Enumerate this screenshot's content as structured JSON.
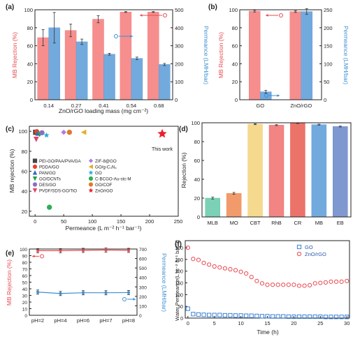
{
  "chart_data": [
    {
      "panel": "(a)",
      "type": "bar",
      "xlabel": "ZnO/rGO loading mass (mg cm⁻²)",
      "ylabel_left": "MB Rejection (%)",
      "ylabel_right": "Permeance (LMH/bar)",
      "categories": [
        "0.14",
        "0.27",
        "0.41",
        "0.54",
        "0.68"
      ],
      "ylim_left": [
        0,
        100
      ],
      "ylim_right": [
        0,
        500
      ],
      "yticks_left": [
        0,
        20,
        40,
        60,
        80,
        100
      ],
      "yticks_right": [
        0,
        100,
        200,
        300,
        400,
        500
      ],
      "series": [
        {
          "axis": "left",
          "color": "#f47a7a",
          "values": [
            69,
            77,
            89.5,
            97.5,
            97.5
          ],
          "errors": [
            9,
            7,
            4,
            0.5,
            0.5
          ]
        },
        {
          "axis": "right",
          "color": "#5b9bd8",
          "values": [
            400,
            322,
            253,
            230,
            196
          ],
          "errors": [
            85,
            15,
            5,
            7,
            6
          ]
        }
      ]
    },
    {
      "panel": "(b)",
      "type": "bar",
      "ylabel_left": "MB Rejection (%)",
      "ylabel_right": "Permeance (LMH/bar)",
      "categories": [
        "GO",
        "ZnO/rGO"
      ],
      "ylim_left": [
        0,
        100
      ],
      "ylim_right": [
        0,
        250
      ],
      "yticks_left": [
        0,
        20,
        40,
        60,
        80,
        100
      ],
      "yticks_right": [
        0,
        50,
        100,
        150,
        200,
        250
      ],
      "series": [
        {
          "axis": "left",
          "color": "#f47a7a",
          "values": [
            98.5,
            98
          ],
          "errors": [
            1,
            1
          ]
        },
        {
          "axis": "right",
          "color": "#5b9bd8",
          "values": [
            22,
            245
          ],
          "errors": [
            4,
            8
          ]
        }
      ]
    },
    {
      "panel": "(c)",
      "type": "scatter",
      "xlabel": "Permeance (L m⁻² h⁻¹ bar⁻¹)",
      "ylabel": "MB rejection (%)",
      "xlim": [
        -10,
        250
      ],
      "ylim": [
        15,
        105
      ],
      "xticks": [
        0,
        50,
        100,
        150,
        200,
        250
      ],
      "annotation": "This work",
      "points": [
        {
          "name": "PEI-GO/PAA/PVA/GA",
          "color": "#444444",
          "marker": "square",
          "x": 1,
          "y": 99
        },
        {
          "name": "PDDA/GO",
          "color": "#e8412c",
          "marker": "circle",
          "x": 3,
          "y": 99.5
        },
        {
          "name": "PAN/GO",
          "color": "#2e6dbf",
          "marker": "triangle-up",
          "x": 5,
          "y": 98
        },
        {
          "name": "GO/DCNTs",
          "color": "#2a9d4a",
          "marker": "triangle-down",
          "x": 8,
          "y": 97
        },
        {
          "name": "DES/GO",
          "color": "#8a6fc0",
          "marker": "circle",
          "x": 12,
          "y": 98.5
        },
        {
          "name": "PVDF/SDS-GO/TiO",
          "color": "#e8416e",
          "marker": "triangle-down",
          "x": 2,
          "y": 92
        },
        {
          "name": "ZIF-8@GO",
          "color": "#b57be0",
          "marker": "diamond",
          "x": 50,
          "y": 99
        },
        {
          "name": "GO/g-C₃N₄",
          "color": "#e0b02c",
          "marker": "triangle-left",
          "x": 85,
          "y": 99
        },
        {
          "name": "GO",
          "color": "#2aaed2",
          "marker": "star",
          "x": 20,
          "y": 96
        },
        {
          "name": "C-BCGO-Au-stc-M",
          "color": "#2fae57",
          "marker": "circle",
          "x": 25,
          "y": 24
        },
        {
          "name": "GO/COF",
          "color": "#e07a2c",
          "marker": "circle",
          "x": 60,
          "y": 99
        },
        {
          "name": "ZnO/rGO",
          "color": "#e8222c",
          "marker": "star",
          "x": 222,
          "y": 97.5
        }
      ]
    },
    {
      "panel": "(d)",
      "type": "bar",
      "ylabel": "Rejection (%)",
      "ylim": [
        0,
        100
      ],
      "yticks": [
        0,
        20,
        40,
        60,
        80,
        100
      ],
      "categories": [
        "MLB",
        "MO",
        "CBT",
        "RhB",
        "CR",
        "MB",
        "EB"
      ],
      "values": [
        20,
        25,
        98.5,
        97.5,
        99.5,
        98,
        96
      ],
      "errors": [
        1,
        1,
        0.5,
        0.5,
        0.3,
        0.5,
        0.5
      ],
      "colors": [
        "#63c9a8",
        "#ef8a52",
        "#f2d27a",
        "#f06f6f",
        "#e85a4f",
        "#5b9bd8",
        "#6a86c8"
      ]
    },
    {
      "panel": "(e)",
      "type": "line",
      "ylabel_left": "MB Rejection (%)",
      "ylabel_right": "Permeance (LMH/bar)",
      "categories": [
        "pH=2",
        "pH=4",
        "pH=6",
        "pH=7",
        "pH=8"
      ],
      "ylim_left": [
        0,
        100
      ],
      "ylim_right": [
        0,
        700
      ],
      "yticks_left": [
        0,
        10,
        20,
        30,
        40,
        50,
        60,
        70,
        80,
        90,
        100
      ],
      "yticks_right": [
        0,
        100,
        200,
        300,
        400,
        500,
        600,
        700
      ],
      "series": [
        {
          "axis": "left",
          "color": "#e8484f",
          "values": [
            97.5,
            97.5,
            98,
            98.5,
            98
          ]
        },
        {
          "axis": "right",
          "color": "#3a8fd4",
          "values": [
            245,
            230,
            238,
            238,
            240
          ]
        }
      ]
    },
    {
      "panel": "(f)",
      "type": "scatter",
      "xlabel": "Time (h)",
      "ylabel": "Water Permeance(L m⁻² h⁻¹ bar⁻¹)",
      "xlim": [
        -0.5,
        30.5
      ],
      "ylim": [
        0,
        330
      ],
      "xticks": [
        0,
        5,
        10,
        15,
        20,
        25,
        30
      ],
      "yticks": [
        0,
        50,
        100,
        150,
        200,
        250,
        300
      ],
      "series": [
        {
          "name": "GO",
          "color": "#3a7fd4",
          "marker": "square",
          "x": [
            0,
            1,
            2,
            3,
            4,
            5,
            6,
            7,
            8,
            9,
            10,
            11,
            12,
            13,
            14,
            15,
            16,
            17,
            18,
            19,
            20,
            21,
            22,
            23,
            24,
            25,
            26,
            27,
            28,
            29,
            30
          ],
          "y": [
            40,
            17,
            15,
            14,
            13,
            13,
            13,
            12,
            12,
            11,
            11,
            10,
            10,
            9,
            8,
            8,
            7,
            7,
            7,
            6,
            6,
            6,
            6,
            6,
            6,
            6,
            5,
            5,
            5,
            5,
            5
          ]
        },
        {
          "name": "ZnO/rGO",
          "color": "#e8484f",
          "marker": "circle",
          "x": [
            0,
            1,
            2,
            3,
            4,
            5,
            6,
            7,
            8,
            9,
            10,
            11,
            12,
            13,
            14,
            15,
            16,
            17,
            18,
            19,
            20,
            21,
            22,
            23,
            24,
            25,
            26,
            27,
            28,
            29,
            30
          ],
          "y": [
            300,
            252,
            248,
            235,
            228,
            220,
            216,
            212,
            208,
            204,
            197,
            190,
            175,
            158,
            148,
            142,
            142,
            142,
            142,
            142,
            142,
            138,
            138,
            140,
            148,
            150,
            152,
            155,
            155,
            155,
            158
          ]
        }
      ]
    }
  ]
}
